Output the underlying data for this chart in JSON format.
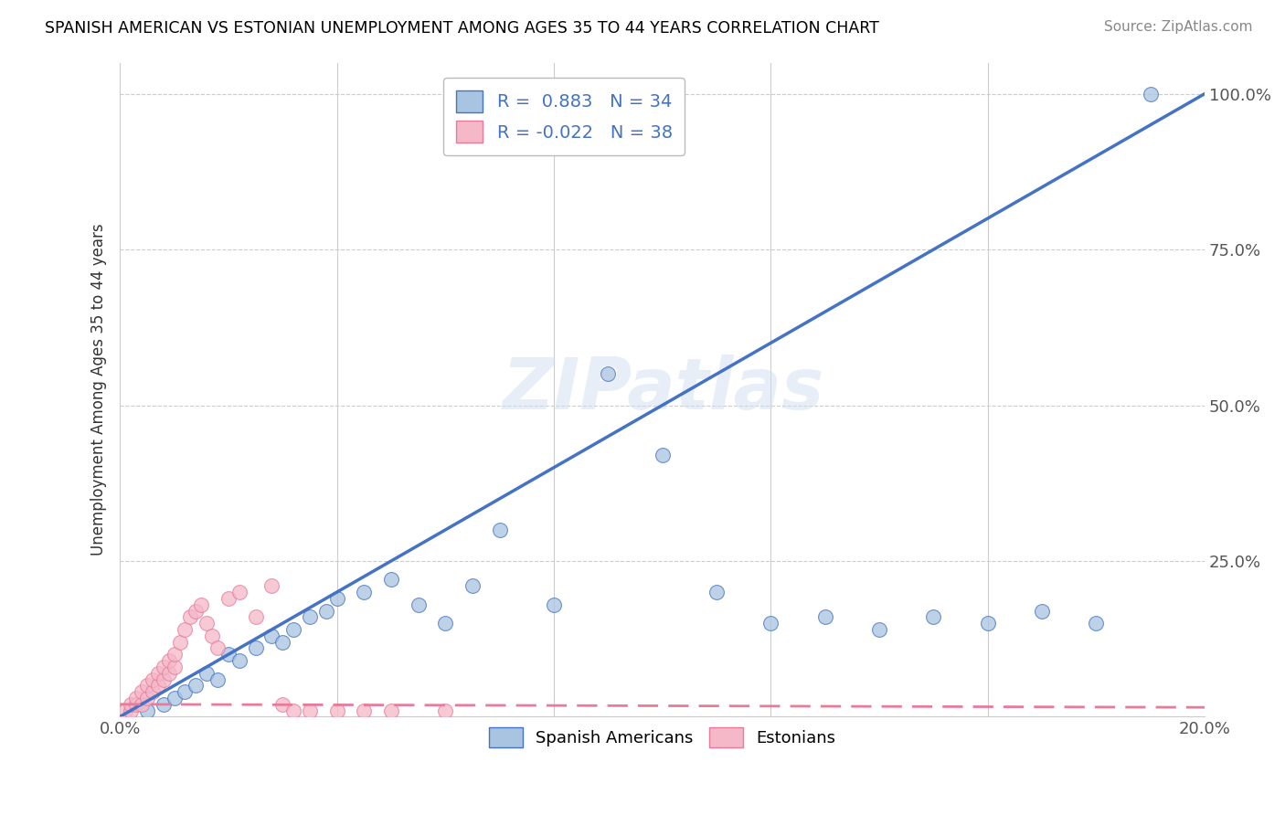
{
  "title": "SPANISH AMERICAN VS ESTONIAN UNEMPLOYMENT AMONG AGES 35 TO 44 YEARS CORRELATION CHART",
  "source": "Source: ZipAtlas.com",
  "ylabel": "Unemployment Among Ages 35 to 44 years",
  "xlim": [
    0.0,
    0.2
  ],
  "ylim": [
    0.0,
    1.05
  ],
  "xticks": [
    0.0,
    0.2
  ],
  "xticklabels": [
    "0.0%",
    "20.0%"
  ],
  "yticks": [
    0.0,
    0.25,
    0.5,
    0.75,
    1.0
  ],
  "yticklabels": [
    "",
    "25.0%",
    "50.0%",
    "75.0%",
    "100.0%"
  ],
  "blue_R": 0.883,
  "blue_N": 34,
  "pink_R": -0.022,
  "pink_N": 38,
  "blue_color": "#a8c4e0",
  "blue_edge_color": "#4472c4",
  "blue_line_color": "#4472c4",
  "pink_color": "#f4b8c8",
  "pink_edge_color": "#e87a9a",
  "pink_line_color": "#e87a9a",
  "watermark": "ZIPatlas",
  "blue_line_x": [
    0.0,
    0.2
  ],
  "blue_line_y": [
    0.0,
    1.0
  ],
  "pink_line_x": [
    0.0,
    0.2
  ],
  "pink_line_y": [
    0.02,
    0.015
  ],
  "blue_scatter_x": [
    0.005,
    0.008,
    0.01,
    0.012,
    0.014,
    0.016,
    0.018,
    0.02,
    0.022,
    0.025,
    0.028,
    0.03,
    0.032,
    0.035,
    0.038,
    0.04,
    0.045,
    0.05,
    0.055,
    0.06,
    0.065,
    0.07,
    0.08,
    0.09,
    0.1,
    0.11,
    0.12,
    0.13,
    0.14,
    0.15,
    0.16,
    0.17,
    0.18,
    0.19
  ],
  "blue_scatter_y": [
    0.01,
    0.02,
    0.03,
    0.04,
    0.05,
    0.07,
    0.06,
    0.1,
    0.09,
    0.11,
    0.13,
    0.12,
    0.14,
    0.16,
    0.17,
    0.19,
    0.2,
    0.22,
    0.18,
    0.15,
    0.21,
    0.3,
    0.18,
    0.55,
    0.42,
    0.2,
    0.15,
    0.16,
    0.14,
    0.16,
    0.15,
    0.17,
    0.15,
    1.0
  ],
  "pink_scatter_x": [
    0.001,
    0.002,
    0.002,
    0.003,
    0.003,
    0.004,
    0.004,
    0.005,
    0.005,
    0.006,
    0.006,
    0.007,
    0.007,
    0.008,
    0.008,
    0.009,
    0.009,
    0.01,
    0.01,
    0.011,
    0.012,
    0.013,
    0.014,
    0.015,
    0.016,
    0.017,
    0.018,
    0.02,
    0.022,
    0.025,
    0.028,
    0.03,
    0.032,
    0.035,
    0.04,
    0.045,
    0.05,
    0.06
  ],
  "pink_scatter_y": [
    0.01,
    0.01,
    0.02,
    0.02,
    0.03,
    0.02,
    0.04,
    0.03,
    0.05,
    0.04,
    0.06,
    0.05,
    0.07,
    0.06,
    0.08,
    0.07,
    0.09,
    0.08,
    0.1,
    0.12,
    0.14,
    0.16,
    0.17,
    0.18,
    0.15,
    0.13,
    0.11,
    0.19,
    0.2,
    0.16,
    0.21,
    0.02,
    0.01,
    0.01,
    0.01,
    0.01,
    0.01,
    0.01
  ]
}
